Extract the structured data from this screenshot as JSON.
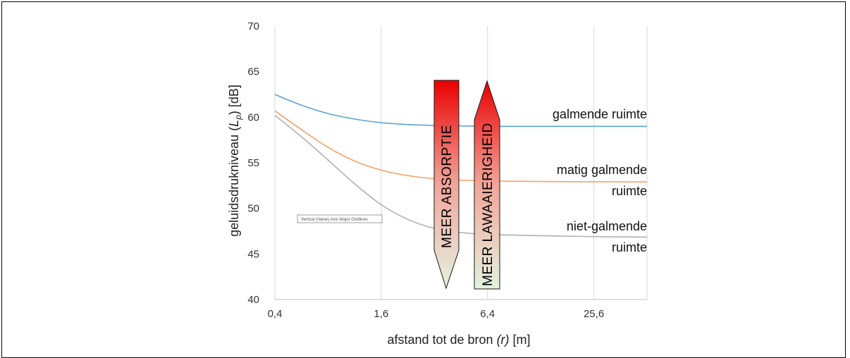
{
  "chart_data": {
    "type": "line",
    "xlabel": "afstand tot de bron (r) [m]",
    "xlabel_parts": {
      "pre": "afstand tot de bron ",
      "var": "(r)",
      "post": " [m]"
    },
    "ylabel_parts": {
      "pre": "geluidsdrukniveau (",
      "var": "L",
      "sub": "p",
      "post": ") [dB]"
    },
    "x_scale": "log2",
    "xlim": [
      0.4,
      51.2
    ],
    "ylim": [
      40,
      70
    ],
    "x_ticks": [
      0.4,
      1.6,
      6.4,
      25.6
    ],
    "x_tick_labels": [
      "0,4",
      "1,6",
      "6,4",
      "25,6"
    ],
    "y_ticks": [
      40,
      45,
      50,
      55,
      60,
      65,
      70
    ],
    "y_tick_labels": [
      "40",
      "45",
      "50",
      "55",
      "60",
      "65",
      "70"
    ],
    "grid": "vertical",
    "series": [
      {
        "color": "#5ba3d8",
        "x": [
          0.4,
          0.57,
          0.8,
          1.13,
          1.6,
          2.26,
          3.2,
          4.5,
          6.4,
          12.8,
          25.6,
          51.2
        ],
        "y": [
          62.5,
          61.3,
          60.4,
          59.8,
          59.4,
          59.2,
          59.1,
          59.05,
          59.0,
          59.0,
          59.0,
          59.0
        ]
      },
      {
        "color": "#f5a066",
        "x": [
          0.4,
          0.57,
          0.8,
          1.13,
          1.6,
          2.26,
          3.2,
          4.5,
          6.4,
          12.8,
          25.6,
          51.2
        ],
        "y": [
          60.7,
          58.6,
          56.7,
          55.2,
          54.2,
          53.6,
          53.25,
          53.1,
          53.0,
          52.95,
          52.92,
          52.9
        ]
      },
      {
        "color": "#b0b0b0",
        "x": [
          0.4,
          0.57,
          0.8,
          1.13,
          1.6,
          2.26,
          3.2,
          4.5,
          6.4,
          12.8,
          25.6,
          51.2
        ],
        "y": [
          60.2,
          57.8,
          55.3,
          52.7,
          50.4,
          48.8,
          47.8,
          47.35,
          47.15,
          47.0,
          46.9,
          46.85
        ]
      }
    ],
    "annotations": {
      "s1": [
        "galmende ruimte"
      ],
      "s2": [
        "matig galmende",
        "ruimte"
      ],
      "s3": [
        "niet-galmende",
        "ruimte"
      ],
      "arrow_down": "MEER ABSORPTIE",
      "arrow_up": "MEER LAWAAIERIGHEID",
      "tooltip": "Vertical (Value) Axis Major Gridlines"
    }
  }
}
